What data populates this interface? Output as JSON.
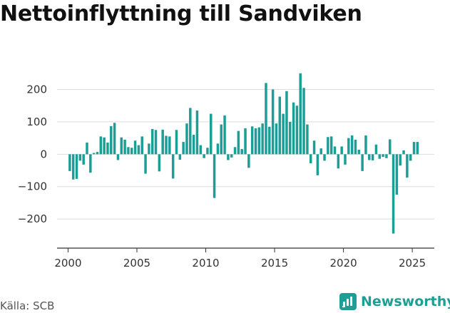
{
  "title": "Nettoinflyttning till Sandviken",
  "source": "Källa: SCB",
  "brand": {
    "name": "Newsworthy",
    "icon": "newsworthy-logo-icon"
  },
  "colors": {
    "bar": "#1a9e96",
    "grid": "#dddddd",
    "axis": "#333333",
    "brand": "#1f9e96"
  },
  "chart_data": {
    "type": "bar",
    "title": "Nettoinflyttning till Sandviken",
    "xlabel": "",
    "ylabel": "",
    "x_ticks": [
      2000,
      2005,
      2010,
      2015,
      2020,
      2025
    ],
    "y_ticks": [
      -200,
      -100,
      0,
      100,
      200
    ],
    "y_tick_labels": [
      "−200",
      "−100",
      "0",
      "100",
      "200"
    ],
    "ylim": [
      -290,
      265
    ],
    "xlim": [
      1999.2,
      2026.6
    ],
    "grid": true,
    "frequency": "quarterly",
    "start": "2000-Q1",
    "values": [
      -52,
      -78,
      -76,
      -20,
      -32,
      36,
      -57,
      4,
      7,
      55,
      52,
      36,
      87,
      97,
      -18,
      52,
      45,
      22,
      20,
      42,
      28,
      55,
      -60,
      33,
      78,
      75,
      -53,
      76,
      57,
      55,
      -75,
      75,
      -17,
      38,
      95,
      143,
      60,
      135,
      28,
      -12,
      20,
      125,
      -135,
      33,
      92,
      120,
      -18,
      -10,
      22,
      72,
      16,
      80,
      -42,
      86,
      80,
      83,
      95,
      220,
      85,
      200,
      95,
      178,
      125,
      195,
      100,
      160,
      150,
      250,
      205,
      92,
      -28,
      42,
      -65,
      18,
      -20,
      53,
      55,
      24,
      -44,
      24,
      -32,
      50,
      58,
      45,
      14,
      -52,
      58,
      -18,
      -19,
      30,
      -14,
      -8,
      -12,
      46,
      -245,
      -125,
      -35,
      12,
      -72,
      -20,
      38,
      38
    ]
  }
}
